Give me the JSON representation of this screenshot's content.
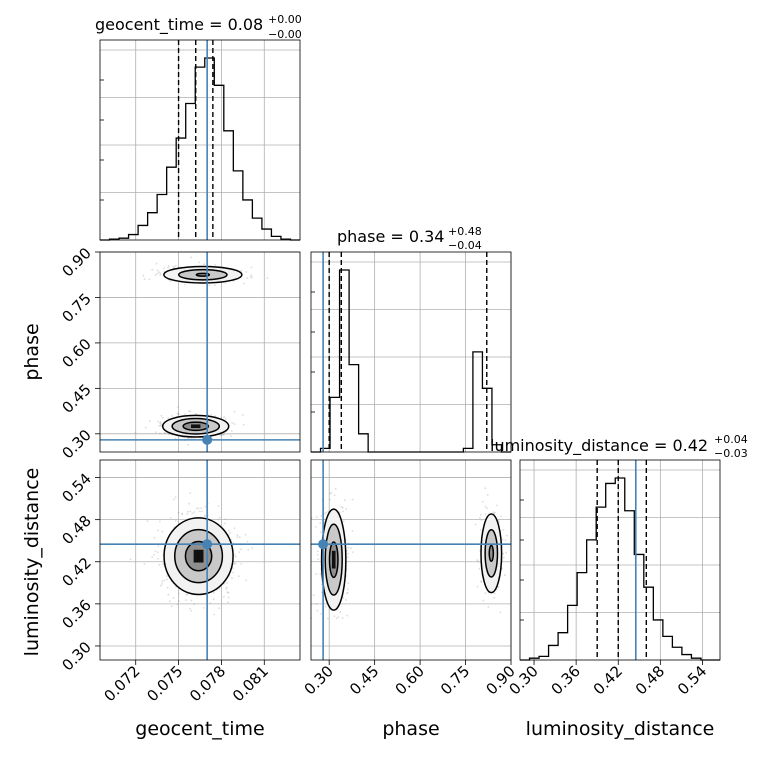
{
  "chart_data": {
    "type": "corner",
    "parameters": [
      "geocent_time",
      "phase",
      "luminosity_distance"
    ],
    "titles": [
      {
        "param": "geocent_time",
        "median": "0.08",
        "plus": "+0.00",
        "minus": "−0.00"
      },
      {
        "param": "phase",
        "median": "0.34",
        "plus": "+0.48",
        "minus": "−0.04"
      },
      {
        "param": "luminosity_distance",
        "median": "0.42",
        "plus": "+0.04",
        "minus": "−0.03"
      }
    ],
    "truths": {
      "geocent_time": 0.077,
      "phase": 0.28,
      "luminosity_distance": 0.445
    },
    "ranges": {
      "geocent_time": [
        0.0695,
        0.0835
      ],
      "phase": [
        0.24,
        0.9
      ],
      "luminosity_distance": [
        0.28,
        0.565
      ]
    },
    "ticks": {
      "geocent_time": {
        "values": [
          0.072,
          0.075,
          0.078,
          0.081
        ],
        "labels": [
          "0.072",
          "0.075",
          "0.078",
          "0.081"
        ]
      },
      "phase": {
        "values": [
          0.3,
          0.45,
          0.6,
          0.75,
          0.9
        ],
        "labels": [
          "0.30",
          "0.45",
          "0.60",
          "0.75",
          "0.90"
        ]
      },
      "luminosity_distance": {
        "values": [
          0.3,
          0.36,
          0.42,
          0.48,
          0.54
        ],
        "labels": [
          "0.30",
          "0.36",
          "0.42",
          "0.48",
          "0.54"
        ]
      }
    },
    "quantiles": {
      "geocent_time": [
        0.075,
        0.0762,
        0.0774
      ],
      "phase": [
        0.3,
        0.34,
        0.82
      ],
      "luminosity_distance": [
        0.39,
        0.42,
        0.46
      ]
    },
    "histograms": {
      "geocent_time": [
        0,
        0.5,
        1,
        3,
        8,
        15,
        25,
        40,
        56,
        75,
        95,
        100,
        85,
        60,
        38,
        22,
        12,
        6,
        2,
        0.5,
        0
      ],
      "phase": [
        0,
        2,
        30,
        100,
        48,
        10,
        0,
        0,
        0,
        0,
        0,
        0,
        0,
        0,
        0,
        0,
        2,
        55,
        35,
        4,
        0
      ],
      "luminosity_distance": [
        0,
        1,
        2,
        8,
        15,
        30,
        48,
        66,
        84,
        97,
        100,
        82,
        58,
        40,
        22,
        13,
        7,
        3,
        1,
        0,
        0
      ]
    },
    "grid": true
  }
}
